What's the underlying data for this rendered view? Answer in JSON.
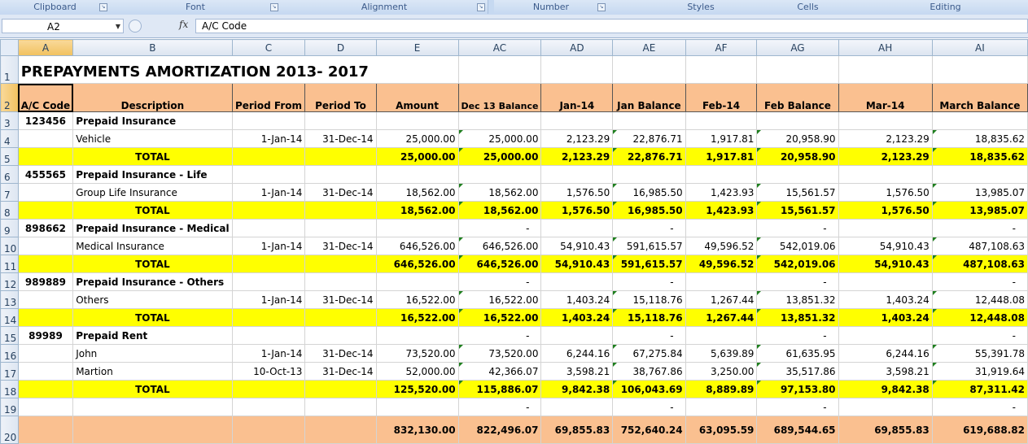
{
  "ribbon": {
    "groups": [
      {
        "label": "Clipboard",
        "launcher": true
      },
      {
        "label": "Font",
        "launcher": true
      },
      {
        "label": "Alignment",
        "launcher": true
      },
      {
        "label": "Number",
        "launcher": true
      },
      {
        "label": "Styles",
        "launcher": false
      },
      {
        "label": "Cells",
        "launcher": false
      },
      {
        "label": "Editing",
        "launcher": false
      }
    ]
  },
  "formula_bar": {
    "name_box": "A2",
    "fx_label": "fx",
    "content": "A/C Code"
  },
  "columns": [
    "A",
    "B",
    "C",
    "D",
    "E",
    "AC",
    "AD",
    "AE",
    "AF",
    "AG",
    "AH",
    "AI"
  ],
  "selected_column": "A",
  "selected_row": "2",
  "sheet": {
    "title": "PREPAYMENTS AMORTIZATION  2013- 2017",
    "headers": [
      "A/C Code",
      "Description",
      "Period From",
      "Period To",
      "Amount",
      "Dec 13 Balance",
      "Jan-14",
      "Jan Balance",
      "Feb-14",
      "Feb Balance",
      "Mar-14",
      "March Balance"
    ],
    "rows": [
      {
        "num": "3",
        "type": "section",
        "code": "123456",
        "desc": "Prepaid Insurance"
      },
      {
        "num": "4",
        "type": "data",
        "desc": "Vehicle",
        "from": "1-Jan-14",
        "to": "31-Dec-14",
        "values": [
          "25,000.00",
          "25,000.00",
          "2,123.29",
          "22,876.71",
          "1,917.81",
          "20,958.90",
          "2,123.29",
          "18,835.62"
        ]
      },
      {
        "num": "5",
        "type": "total",
        "label": "TOTAL",
        "values": [
          "25,000.00",
          "25,000.00",
          "2,123.29",
          "22,876.71",
          "1,917.81",
          "20,958.90",
          "2,123.29",
          "18,835.62"
        ]
      },
      {
        "num": "6",
        "type": "section",
        "code": "455565",
        "desc": "Prepaid Insurance - Life"
      },
      {
        "num": "7",
        "type": "data",
        "desc": "Group Life Insurance",
        "from": "1-Jan-14",
        "to": "31-Dec-14",
        "values": [
          "18,562.00",
          "18,562.00",
          "1,576.50",
          "16,985.50",
          "1,423.93",
          "15,561.57",
          "1,576.50",
          "13,985.07"
        ]
      },
      {
        "num": "8",
        "type": "total",
        "label": "TOTAL",
        "values": [
          "18,562.00",
          "18,562.00",
          "1,576.50",
          "16,985.50",
          "1,423.93",
          "15,561.57",
          "1,576.50",
          "13,985.07"
        ]
      },
      {
        "num": "9",
        "type": "section",
        "code": "898662",
        "desc": "Prepaid Insurance - Medical",
        "dashes": true
      },
      {
        "num": "10",
        "type": "data",
        "desc": "Medical Insurance",
        "from": "1-Jan-14",
        "to": "31-Dec-14",
        "values": [
          "646,526.00",
          "646,526.00",
          "54,910.43",
          "591,615.57",
          "49,596.52",
          "542,019.06",
          "54,910.43",
          "487,108.63"
        ]
      },
      {
        "num": "11",
        "type": "total",
        "label": "TOTAL",
        "values": [
          "646,526.00",
          "646,526.00",
          "54,910.43",
          "591,615.57",
          "49,596.52",
          "542,019.06",
          "54,910.43",
          "487,108.63"
        ]
      },
      {
        "num": "12",
        "type": "section",
        "code": "989889",
        "desc": "Prepaid Insurance - Others",
        "dashes": true
      },
      {
        "num": "13",
        "type": "data",
        "desc": "Others",
        "from": "1-Jan-14",
        "to": "31-Dec-14",
        "values": [
          "16,522.00",
          "16,522.00",
          "1,403.24",
          "15,118.76",
          "1,267.44",
          "13,851.32",
          "1,403.24",
          "12,448.08"
        ]
      },
      {
        "num": "14",
        "type": "total",
        "label": "TOTAL",
        "values": [
          "16,522.00",
          "16,522.00",
          "1,403.24",
          "15,118.76",
          "1,267.44",
          "13,851.32",
          "1,403.24",
          "12,448.08"
        ]
      },
      {
        "num": "15",
        "type": "section",
        "code": "89989",
        "desc": "Prepaid Rent",
        "dashes": true
      },
      {
        "num": "16",
        "type": "data",
        "desc": "John",
        "from": "1-Jan-14",
        "to": "31-Dec-14",
        "values": [
          "73,520.00",
          "73,520.00",
          "6,244.16",
          "67,275.84",
          "5,639.89",
          "61,635.95",
          "6,244.16",
          "55,391.78"
        ]
      },
      {
        "num": "17",
        "type": "data",
        "desc": "Martion",
        "from": "10-Oct-13",
        "to": "31-Dec-14",
        "values": [
          "52,000.00",
          "42,366.07",
          "3,598.21",
          "38,767.86",
          "3,250.00",
          "35,517.86",
          "3,598.21",
          "31,919.64"
        ]
      },
      {
        "num": "18",
        "type": "total",
        "label": "TOTAL",
        "values": [
          "125,520.00",
          "115,886.07",
          "9,842.38",
          "106,043.69",
          "8,889.89",
          "97,153.80",
          "9,842.38",
          "87,311.42"
        ]
      },
      {
        "num": "19",
        "type": "blank",
        "dashes": true
      },
      {
        "num": "20",
        "type": "grand",
        "values": [
          "832,130.00",
          "822,496.07",
          "69,855.83",
          "752,640.24",
          "63,095.59",
          "689,544.65",
          "69,855.83",
          "619,688.82"
        ]
      }
    ],
    "dash": "-"
  },
  "colors": {
    "header_fill": "#fac090",
    "total_fill": "#ffff00",
    "selected_header": "#f1c15f"
  }
}
